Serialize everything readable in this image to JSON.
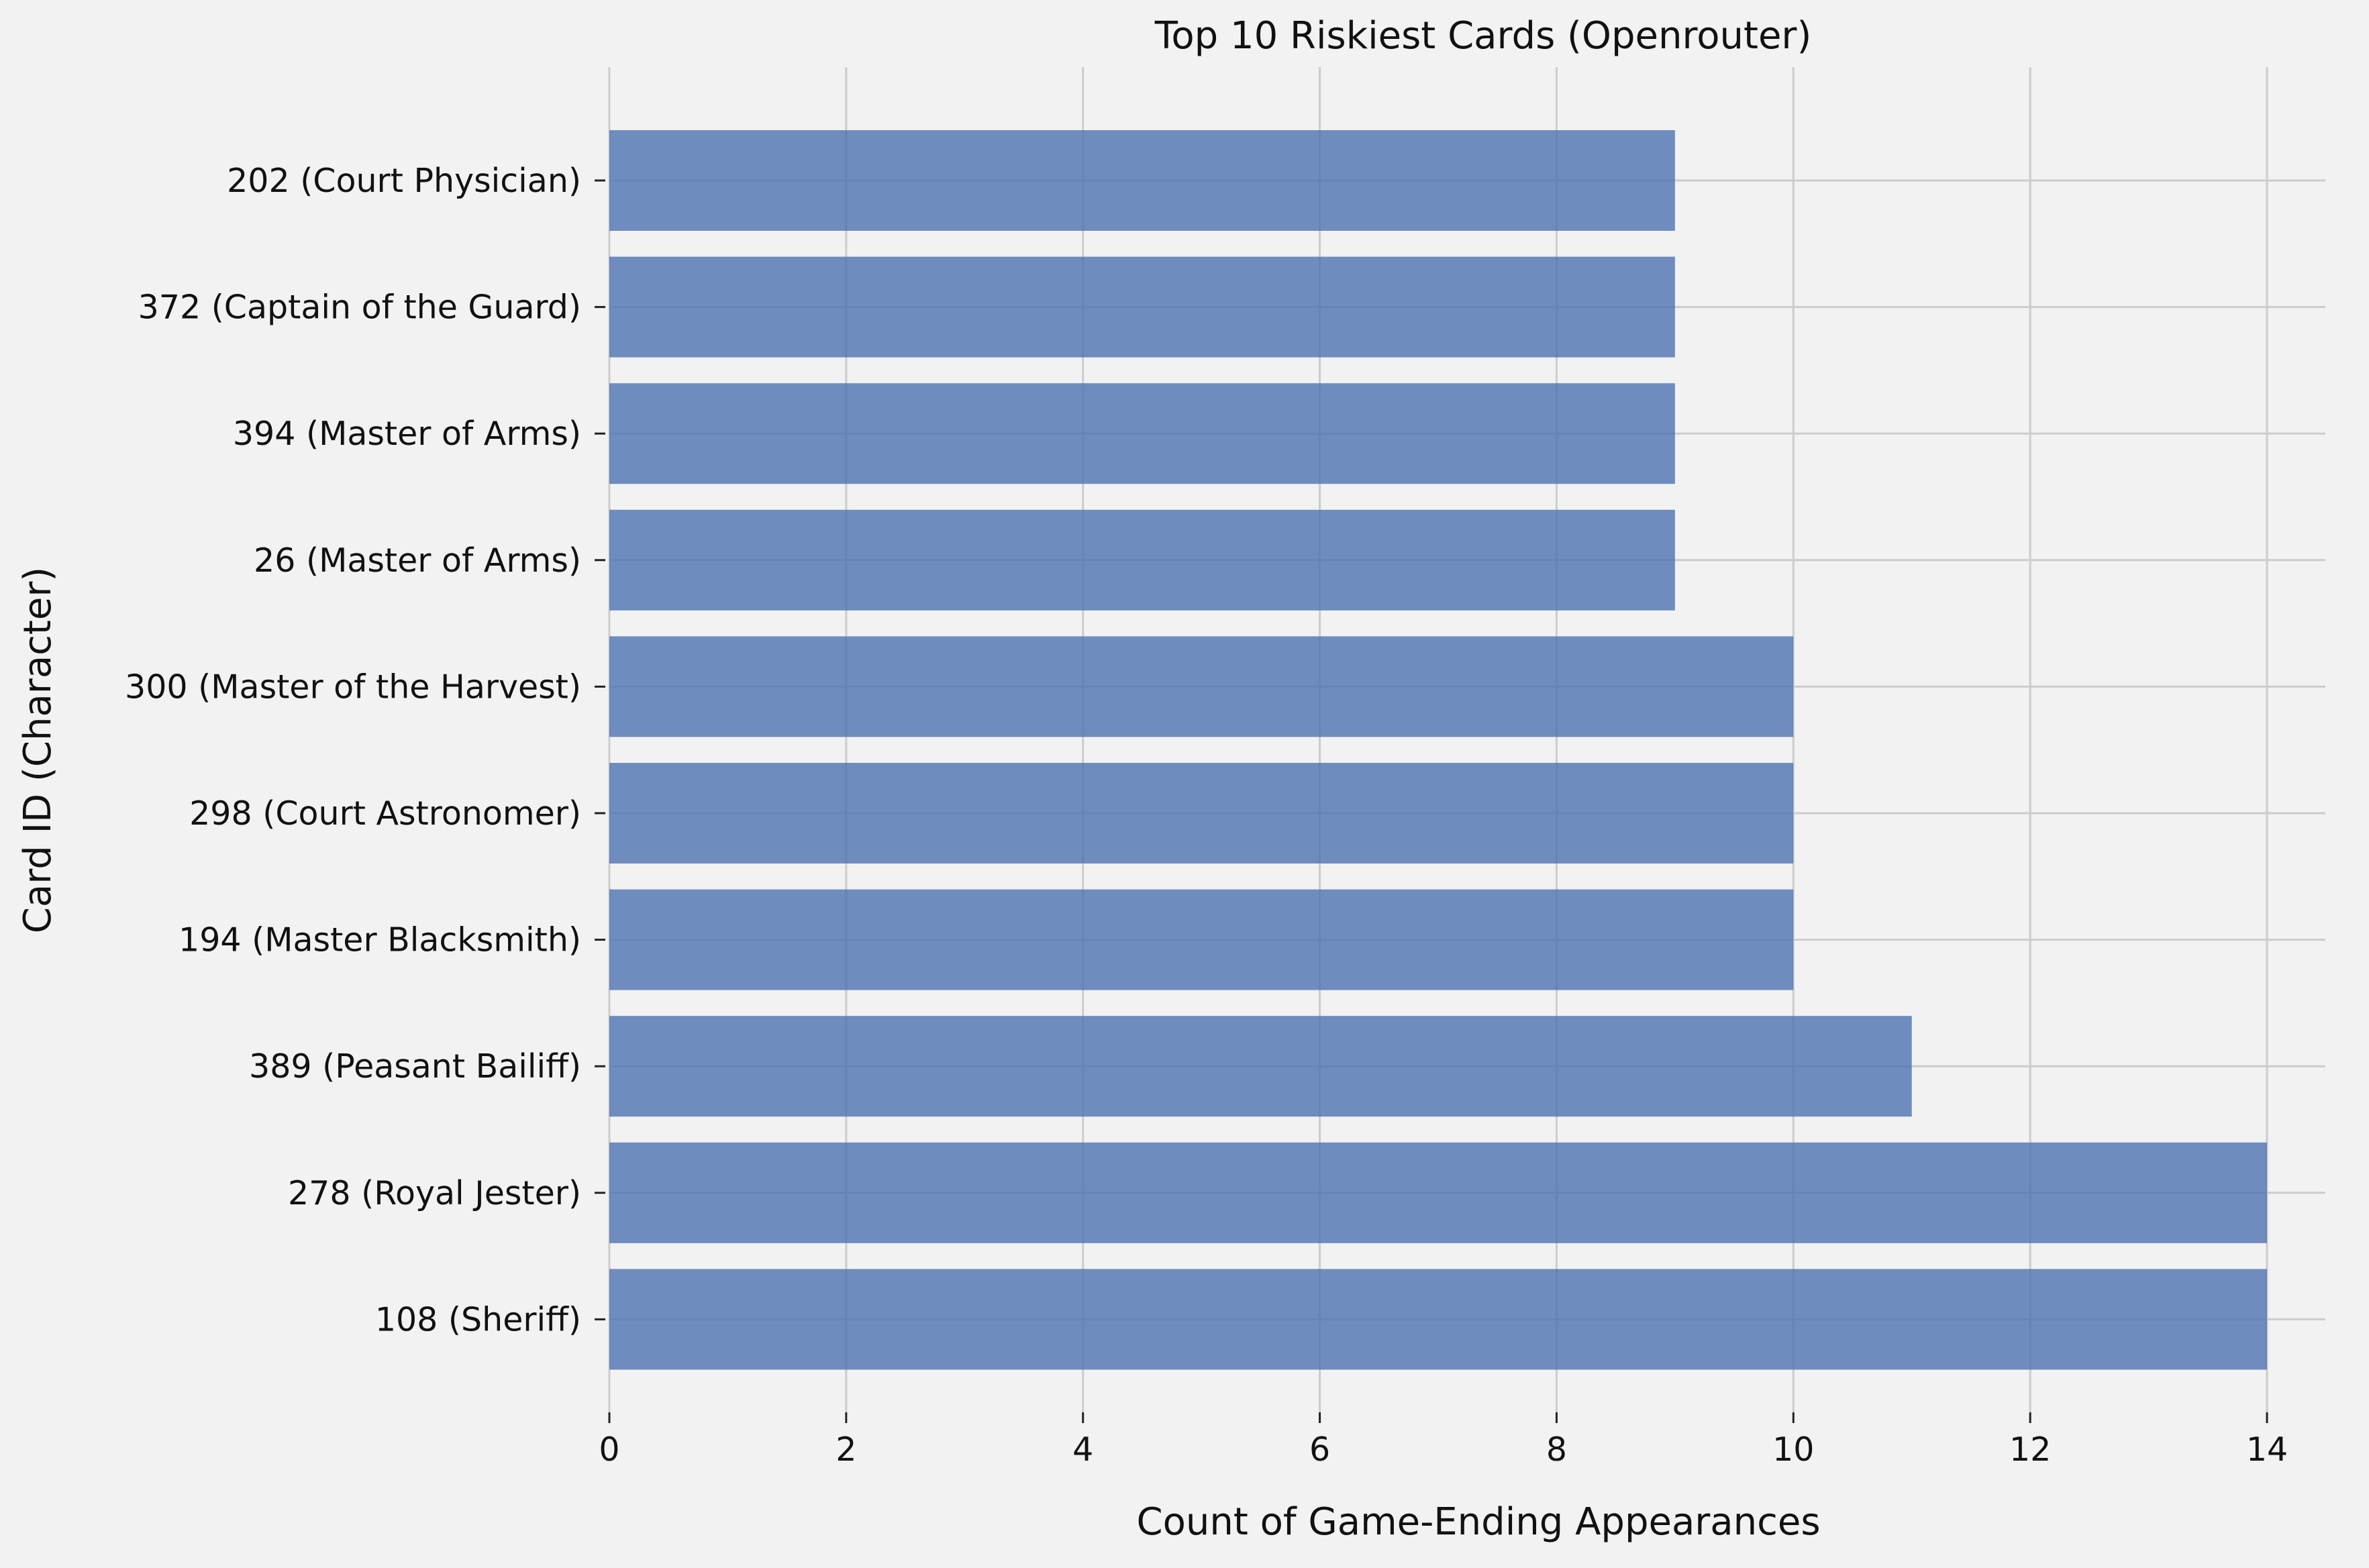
{
  "chart_data": {
    "type": "bar",
    "orientation": "horizontal",
    "title": "Top 10 Riskiest Cards (Openrouter)",
    "xlabel": "Count of Game-Ending Appearances",
    "ylabel": "Card ID (Character)",
    "categories": [
      "202 (Court Physician)",
      "372 (Captain of the Guard)",
      "394 (Master of Arms)",
      "26 (Master of Arms)",
      "300 (Master of the Harvest)",
      "298 (Court Astronomer)",
      "194 (Master Blacksmith)",
      "389 (Peasant Bailiff)",
      "278 (Royal Jester)",
      "108 (Sheriff)"
    ],
    "values": [
      9,
      9,
      9,
      9,
      10,
      10,
      10,
      11,
      14,
      14
    ],
    "xlim": [
      0,
      14.75
    ],
    "xticks": [
      0,
      2,
      4,
      6,
      8,
      10,
      12,
      14
    ],
    "grid": true,
    "bar_color": "#4c72b0",
    "bar_opacity": 0.8,
    "background_color": "#f2f2f2",
    "grid_color": "#cccccc"
  }
}
